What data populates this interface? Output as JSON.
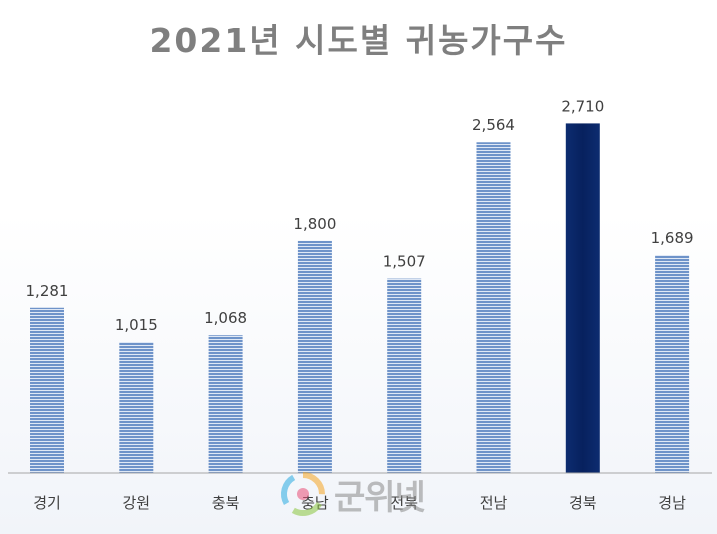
{
  "chart_data": {
    "type": "bar",
    "title": "2021년 시도별 귀농가구수",
    "categories": [
      "경기",
      "강원",
      "충북",
      "충남",
      "전북",
      "전남",
      "경북",
      "경남"
    ],
    "values": [
      1281,
      1015,
      1068,
      1800,
      1507,
      2564,
      2710,
      1689
    ],
    "value_labels": [
      "1,281",
      "1,015",
      "1,068",
      "1,800",
      "1,507",
      "2,564",
      "2,710",
      "1,689"
    ],
    "highlight_category": "경북",
    "ylim": [
      0,
      3000
    ],
    "grid": false,
    "legend": "none",
    "colors": {
      "bar": "#6e93c9",
      "bar_stripe": "#dfe8f5",
      "highlight": "#07215e",
      "axis": "#a6a6a6",
      "title": "#7f7f7f"
    }
  },
  "watermark": {
    "text": "군위넷",
    "icon": "colorful-circle-logo-icon"
  }
}
